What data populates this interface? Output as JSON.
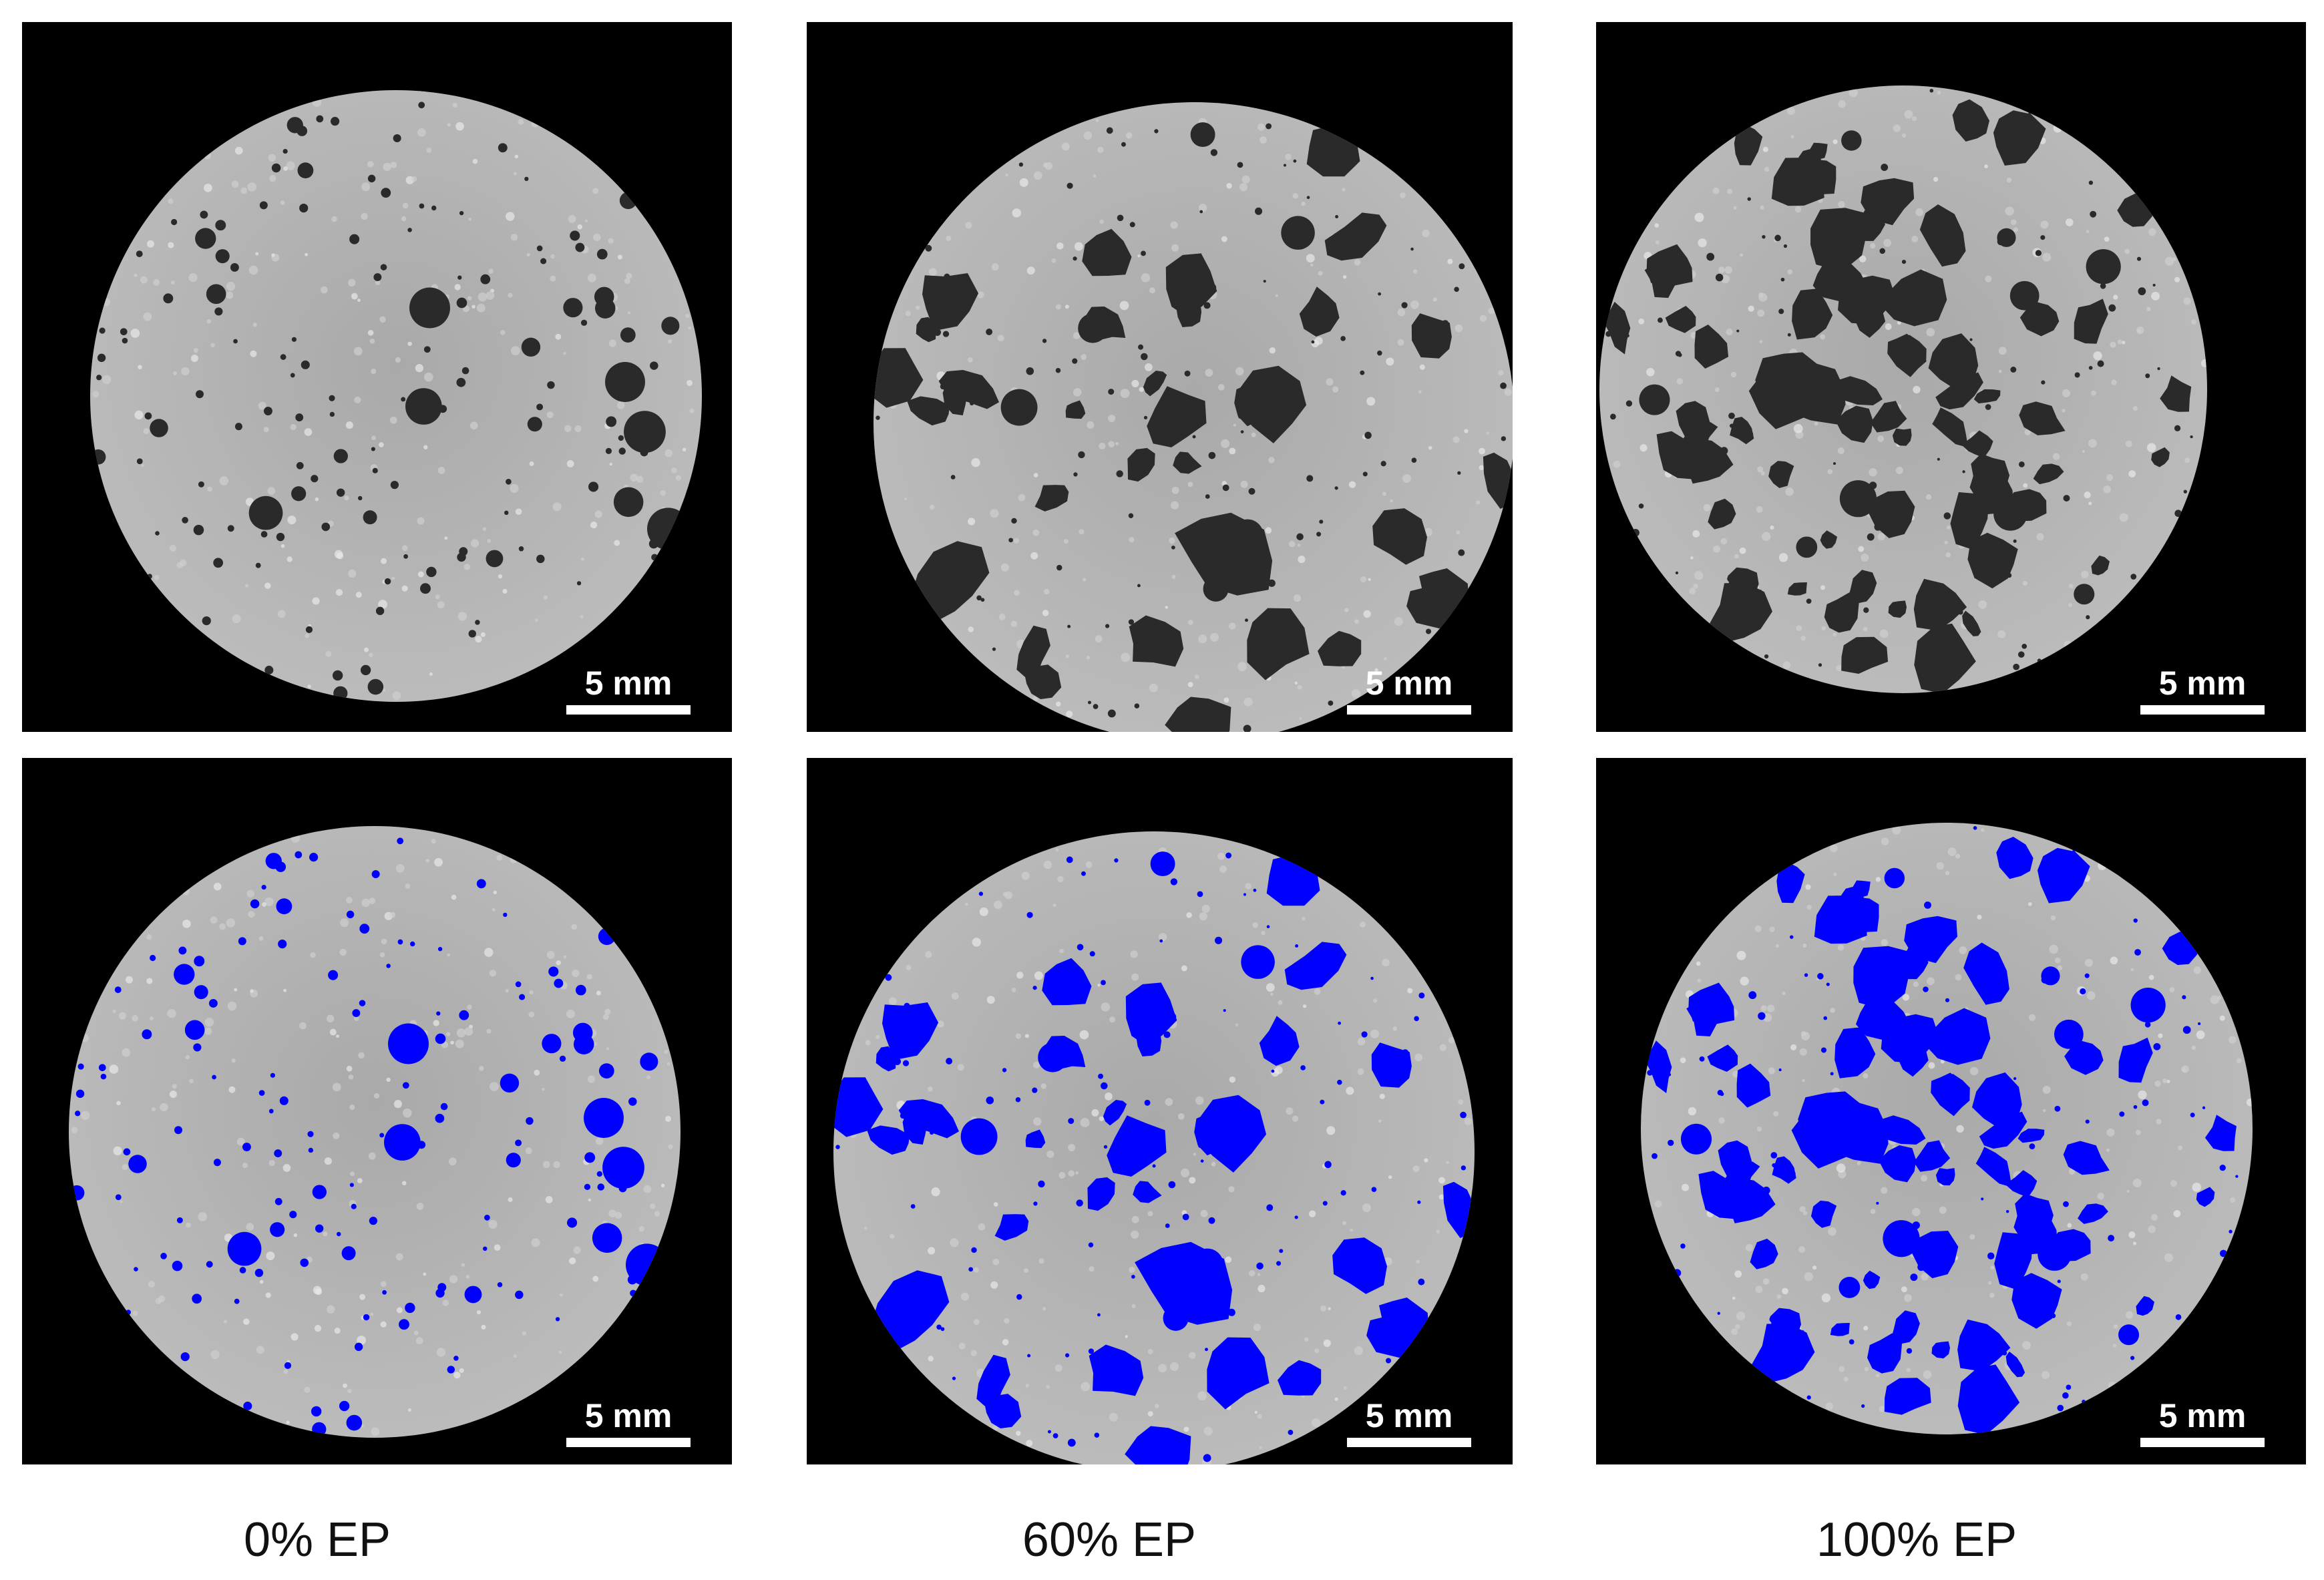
{
  "figure": {
    "columns": [
      {
        "caption": "0% EP"
      },
      {
        "caption": "60% EP"
      },
      {
        "caption": "100% EP"
      }
    ],
    "scale_bar_label": "5 mm",
    "colors": {
      "background": "#000000",
      "specimen": "#b4b4b4",
      "pore_dark": "#2a2a2a",
      "pore_highlight": "#0000ff"
    }
  }
}
